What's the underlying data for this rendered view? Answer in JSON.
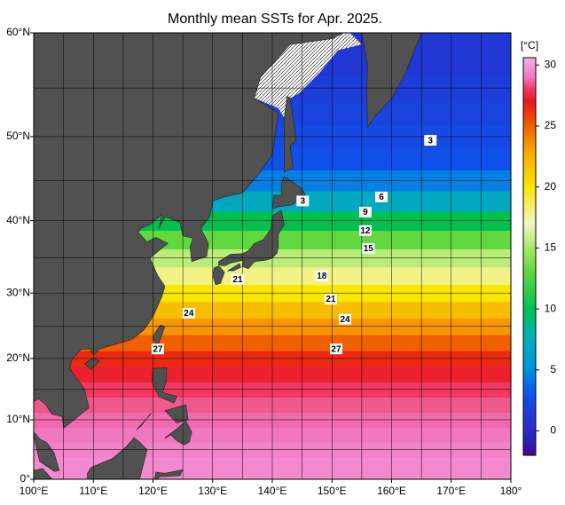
{
  "map": {
    "title": "Monthly mean SSTs for Apr. 2025.",
    "projection": "mercator",
    "lon_range": [
      100,
      180
    ],
    "lat_range": [
      0,
      60
    ],
    "xticks": [
      {
        "value": 100,
        "label": "100°E"
      },
      {
        "value": 110,
        "label": "110°E"
      },
      {
        "value": 120,
        "label": "120°E"
      },
      {
        "value": 130,
        "label": "130°E"
      },
      {
        "value": 140,
        "label": "140°E"
      },
      {
        "value": 150,
        "label": "150°E"
      },
      {
        "value": 160,
        "label": "160°E"
      },
      {
        "value": 170,
        "label": "170°E"
      },
      {
        "value": 180,
        "label": "180°"
      }
    ],
    "yticks": [
      {
        "value": 0,
        "label": "0°"
      },
      {
        "value": 10,
        "label": "10°N"
      },
      {
        "value": 20,
        "label": "20°N"
      },
      {
        "value": 30,
        "label": "30°N"
      },
      {
        "value": 40,
        "label": "40°N"
      },
      {
        "value": 50,
        "label": "50°N"
      },
      {
        "value": 60,
        "label": "60°N"
      }
    ],
    "grid_lon": [
      100,
      105,
      110,
      115,
      120,
      125,
      130,
      135,
      140,
      145,
      150,
      155,
      160,
      165,
      170,
      175,
      180
    ],
    "grid_lat": [
      0,
      5,
      10,
      15,
      20,
      25,
      30,
      35,
      40,
      45,
      50,
      55,
      60
    ],
    "colorbar": {
      "unit": "[°C]",
      "range": [
        -2,
        30.6
      ],
      "ticks": [
        0,
        5,
        10,
        15,
        20,
        25,
        30
      ]
    },
    "colormap": [
      [
        -2,
        "#3a0a9a"
      ],
      [
        0,
        "#2a2ac8"
      ],
      [
        3,
        "#1050e8"
      ],
      [
        5,
        "#0090e0"
      ],
      [
        8,
        "#00b4b0"
      ],
      [
        10,
        "#00c050"
      ],
      [
        13,
        "#60d840"
      ],
      [
        15,
        "#a8e860"
      ],
      [
        17,
        "#f0f8c8"
      ],
      [
        20,
        "#f8e800"
      ],
      [
        23,
        "#f8a800"
      ],
      [
        25,
        "#f06000"
      ],
      [
        27,
        "#e81818"
      ],
      [
        28,
        "#f03860"
      ],
      [
        29,
        "#f078c0"
      ],
      [
        30.6,
        "#f8b0f0"
      ]
    ],
    "zonal_sst": {
      "lat": [
        0,
        2.5,
        5,
        7.5,
        10,
        12.5,
        15,
        17.5,
        20,
        22.5,
        25,
        27.5,
        30,
        32.5,
        35,
        37.5,
        40,
        42.5,
        45,
        47.5,
        50,
        52.5,
        55,
        57.5,
        60
      ],
      "sst": [
        29.5,
        29.5,
        29.3,
        29,
        28.8,
        28.5,
        28,
        27.3,
        26.5,
        25,
        23.5,
        22,
        20,
        18,
        15.5,
        13,
        10,
        7,
        4.5,
        3,
        2.5,
        2,
        1.5,
        1,
        1
      ]
    },
    "contour_labels": [
      {
        "lon": 166.5,
        "lat": 49.6,
        "value": 3
      },
      {
        "lon": 145.1,
        "lat": 42.5,
        "value": 3
      },
      {
        "lon": 158.3,
        "lat": 43.0,
        "value": 6
      },
      {
        "lon": 155.6,
        "lat": 41.1,
        "value": 9
      },
      {
        "lon": 155.6,
        "lat": 38.7,
        "value": 12
      },
      {
        "lon": 156.1,
        "lat": 36.3,
        "value": 15
      },
      {
        "lon": 148.3,
        "lat": 32.5,
        "value": 18
      },
      {
        "lon": 134.2,
        "lat": 32.0,
        "value": 21
      },
      {
        "lon": 149.8,
        "lat": 29.1,
        "value": 21
      },
      {
        "lon": 126.0,
        "lat": 27.0,
        "value": 24
      },
      {
        "lon": 152.2,
        "lat": 26.1,
        "value": 24
      },
      {
        "lon": 120.8,
        "lat": 21.5,
        "value": 27
      },
      {
        "lon": 150.7,
        "lat": 21.5,
        "value": 27
      }
    ],
    "land_color": "#505050",
    "ice_color": "#ffffff"
  }
}
